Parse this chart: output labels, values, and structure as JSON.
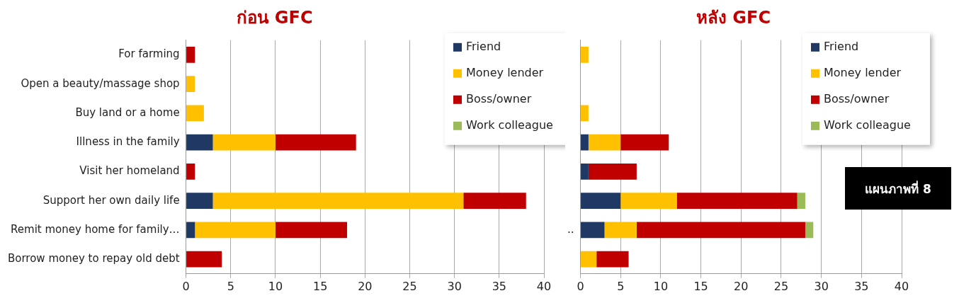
{
  "chart_data": [
    {
      "type": "bar",
      "title": "ก่อน GFC",
      "orientation": "horizontal",
      "stacked": true,
      "grid": "x",
      "legend": "top right",
      "categories": [
        "For farming",
        "Open a beauty/massage shop",
        "Buy land or a home",
        "Illness in the family",
        "Visit her homeland",
        "Support her own daily life",
        "Remit money home for family…",
        "Borrow money to repay old debt"
      ],
      "xlim": [
        0,
        40
      ],
      "xticks": [
        0,
        5,
        10,
        15,
        20,
        25,
        30,
        35,
        40
      ],
      "series": [
        {
          "name": "Friend",
          "color": "#1f3864",
          "values": [
            null,
            null,
            null,
            3,
            null,
            3,
            1,
            null
          ]
        },
        {
          "name": "Money lender",
          "color": "#ffc000",
          "values": [
            null,
            1,
            2,
            7,
            null,
            28,
            9,
            null
          ]
        },
        {
          "name": "Boss/owner",
          "color": "#c00000",
          "values": [
            1,
            null,
            null,
            9,
            1,
            7,
            8,
            4
          ]
        },
        {
          "name": "Work colleague",
          "color": "#9bbb59",
          "values": [
            null,
            null,
            null,
            null,
            null,
            null,
            null,
            null
          ]
        }
      ]
    },
    {
      "type": "bar",
      "title": "หลัง GFC",
      "orientation": "horizontal",
      "stacked": true,
      "grid": "x",
      "legend": "top right",
      "categories": [
        null,
        null,
        null,
        null,
        null,
        null,
        "..",
        null
      ],
      "xlim": [
        0,
        40
      ],
      "xticks": [
        0,
        5,
        10,
        15,
        20,
        25,
        30,
        35,
        40
      ],
      "annotations": [
        "แผนภาพที่ 8"
      ],
      "series": [
        {
          "name": "Friend",
          "color": "#1f3864",
          "values": [
            null,
            null,
            null,
            1,
            1,
            5,
            3,
            null
          ]
        },
        {
          "name": "Money lender",
          "color": "#ffc000",
          "values": [
            1,
            null,
            1,
            4,
            null,
            7,
            4,
            2
          ]
        },
        {
          "name": "Boss/owner",
          "color": "#c00000",
          "values": [
            null,
            null,
            null,
            6,
            6,
            15,
            21,
            4
          ]
        },
        {
          "name": "Work colleague",
          "color": "#9bbb59",
          "values": [
            null,
            null,
            null,
            null,
            null,
            1,
            1,
            null
          ]
        }
      ]
    }
  ]
}
